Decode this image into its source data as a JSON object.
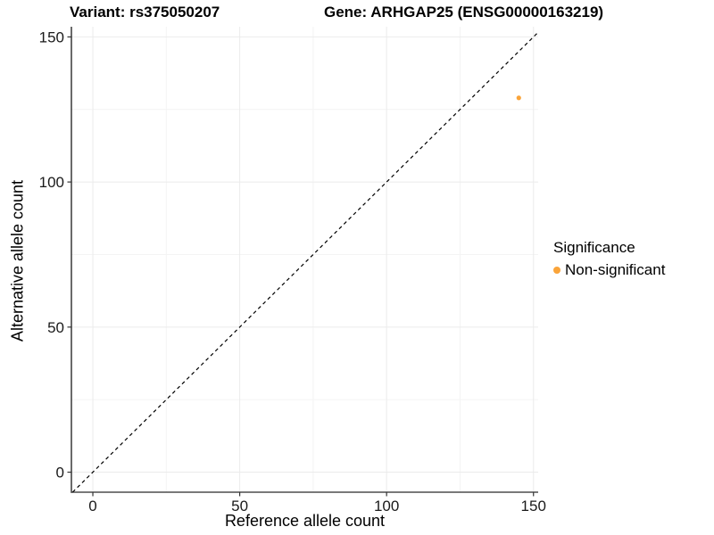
{
  "figure": {
    "background": "#ffffff"
  },
  "chart_data": {
    "type": "scatter",
    "title_left": "Variant: rs375050207",
    "title_right": "Gene: ARHGAP25 (ENSG00000163219)",
    "xlabel": "Reference allele count",
    "ylabel": "Alternative allele count",
    "xlim": [
      -7.3,
      151.6
    ],
    "ylim": [
      -6.9,
      153.5
    ],
    "x_ticks": [
      0,
      50,
      100,
      150
    ],
    "y_ticks": [
      0,
      50,
      100,
      150
    ],
    "x_minor_ticks": [
      25,
      75,
      125
    ],
    "y_minor_ticks": [
      25,
      75,
      125
    ],
    "grid": true,
    "identity_line": {
      "type": "dashed",
      "color": "#000000",
      "slope": 1,
      "intercept": 0
    },
    "series": [
      {
        "name": "Non-significant",
        "color": "#FAA43A",
        "points": [
          {
            "x": 145,
            "y": 129
          }
        ]
      }
    ],
    "legend": {
      "title": "Significance",
      "position": "right",
      "items": [
        {
          "label": "Non-significant",
          "color": "#FAA43A"
        }
      ]
    },
    "colors": {
      "major_grid": "#EBEBEB",
      "minor_grid": "#F4F4F4",
      "axis_line_x": "#4D4D4D",
      "axis_line_y": "#1A1A1A",
      "tick_mark": "#333333",
      "tick_label": "#1A1A1A"
    }
  }
}
